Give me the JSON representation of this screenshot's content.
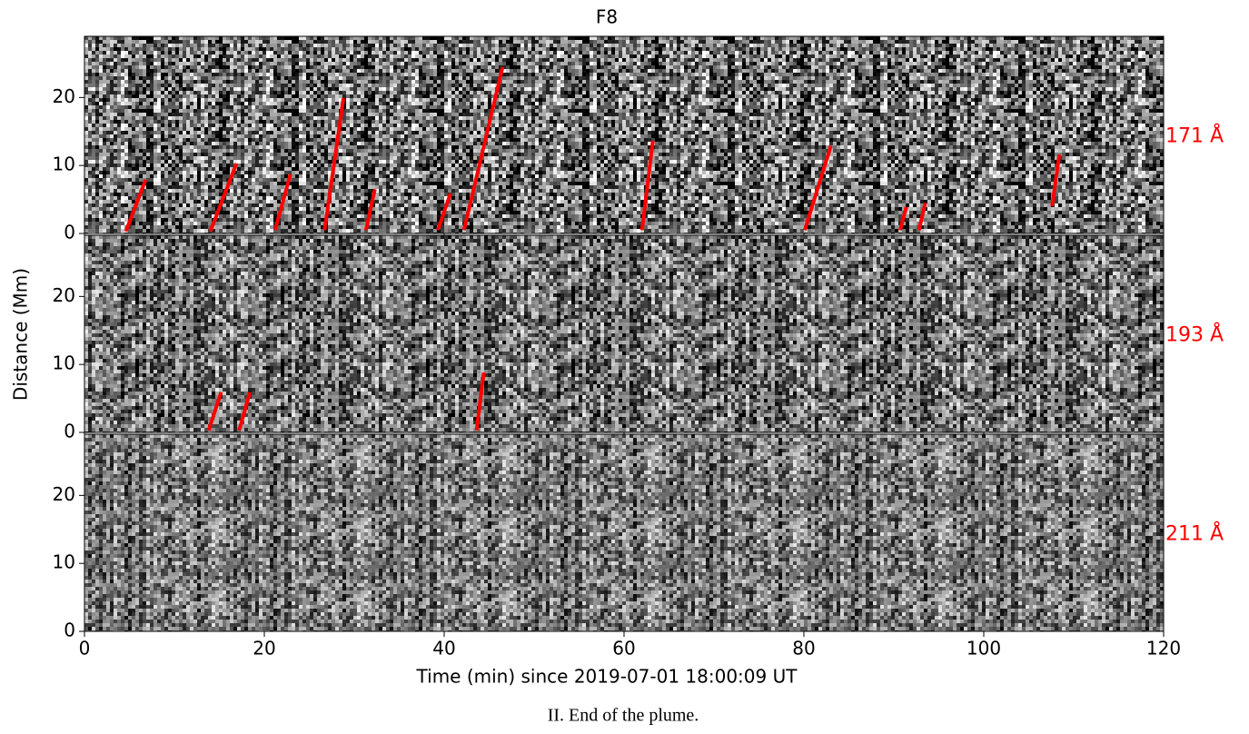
{
  "chart_data": {
    "type": "line",
    "title": "F8",
    "xlabel": "Time (min) since 2019-07-01 18:00:09 UT",
    "ylabel": "Distance (Mm)",
    "xlim": [
      0,
      120
    ],
    "xticks": [
      0,
      20,
      40,
      60,
      80,
      100,
      120
    ],
    "ylim": [
      0,
      29
    ],
    "yticks": [
      0,
      10,
      20
    ],
    "panels": [
      {
        "label": "171 Å",
        "color": "#ff0000",
        "segments": [
          {
            "x": [
              4.6,
              6.8
            ],
            "values": [
              0.3,
              7.9
            ]
          },
          {
            "x": [
              14.0,
              16.9
            ],
            "values": [
              0.3,
              10.3
            ]
          },
          {
            "x": [
              21.2,
              22.9
            ],
            "values": [
              0.5,
              8.7
            ]
          },
          {
            "x": [
              26.7,
              28.8
            ],
            "values": [
              0.5,
              19.9
            ]
          },
          {
            "x": [
              31.3,
              32.3
            ],
            "values": [
              0.5,
              6.5
            ]
          },
          {
            "x": [
              39.3,
              40.7
            ],
            "values": [
              0.5,
              5.9
            ]
          },
          {
            "x": [
              42.2,
              46.5
            ],
            "values": [
              0.5,
              24.5
            ]
          },
          {
            "x": [
              62.0,
              63.2
            ],
            "values": [
              0.5,
              13.6
            ]
          },
          {
            "x": [
              80.1,
              83.0
            ],
            "values": [
              0.5,
              12.9
            ]
          },
          {
            "x": [
              90.7,
              91.4
            ],
            "values": [
              0.5,
              3.9
            ]
          },
          {
            "x": [
              92.8,
              93.5
            ],
            "values": [
              0.5,
              4.5
            ]
          },
          {
            "x": [
              107.6,
              108.4
            ],
            "values": [
              4.0,
              11.6
            ]
          }
        ]
      },
      {
        "label": "193 Å",
        "color": "#ff0000",
        "segments": [
          {
            "x": [
              13.8,
              15.2
            ],
            "values": [
              0.3,
              5.9
            ]
          },
          {
            "x": [
              17.2,
              18.4
            ],
            "values": [
              0.3,
              5.9
            ]
          },
          {
            "x": [
              43.6,
              44.4
            ],
            "values": [
              0.3,
              8.8
            ]
          }
        ]
      },
      {
        "label": "211 Å",
        "color": "#ff0000",
        "segments": []
      }
    ]
  },
  "caption": "II. End of the plume."
}
